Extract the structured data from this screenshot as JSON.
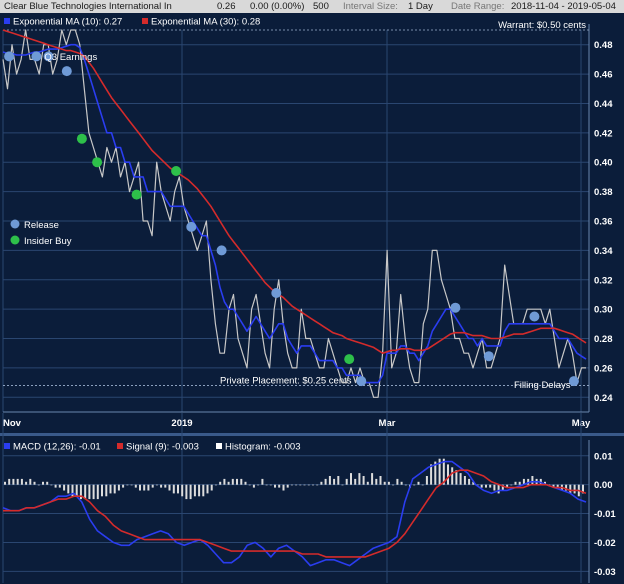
{
  "header": {
    "symbol_name": "Clear Blue Technologies International In",
    "price": "0.26",
    "change": "0.00 (0.00%)",
    "volume": "500",
    "interval_label": "Interval Size:",
    "interval_value": "1 Day",
    "range_label": "Date Range:",
    "range_value": "2018-11-04 - 2019-05-04"
  },
  "chart_data": [
    {
      "type": "line",
      "x_labels": [
        "Nov",
        "2019",
        "Mar",
        "May"
      ],
      "ylim": [
        0.23,
        0.49
      ],
      "y_ticks": [
        "0.24",
        "0.26",
        "0.28",
        "0.30",
        "0.32",
        "0.34",
        "0.36",
        "0.38",
        "0.40",
        "0.42",
        "0.44",
        "0.46",
        "0.48"
      ],
      "grid": true,
      "legend": [
        {
          "label": "Exponential MA (10): 0.27",
          "color": "#2a3df0"
        },
        {
          "label": "Exponential MA (30): 0.28",
          "color": "#d42b2b"
        }
      ],
      "series": [
        {
          "name": "Price",
          "color": "#c8c8c8",
          "values": [
            0.47,
            0.45,
            0.48,
            0.46,
            0.47,
            0.49,
            0.47,
            0.47,
            0.46,
            0.48,
            0.48,
            0.46,
            0.47,
            0.49,
            0.48,
            0.49,
            0.49,
            0.48,
            0.45,
            0.42,
            0.41,
            0.4,
            0.39,
            0.41,
            0.4,
            0.41,
            0.39,
            0.4,
            0.38,
            0.39,
            0.4,
            0.36,
            0.36,
            0.35,
            0.4,
            0.38,
            0.37,
            0.36,
            0.38,
            0.39,
            0.37,
            0.36,
            0.35,
            0.34,
            0.35,
            0.36,
            0.32,
            0.29,
            0.27,
            0.27,
            0.3,
            0.31,
            0.28,
            0.27,
            0.26,
            0.3,
            0.31,
            0.29,
            0.27,
            0.26,
            0.3,
            0.32,
            0.29,
            0.27,
            0.26,
            0.26,
            0.3,
            0.28,
            0.28,
            0.27,
            0.26,
            0.26,
            0.28,
            0.27,
            0.26,
            0.25,
            0.25,
            0.26,
            0.25,
            0.26,
            0.25,
            0.25,
            0.24,
            0.24,
            0.27,
            0.34,
            0.26,
            0.27,
            0.31,
            0.28,
            0.26,
            0.25,
            0.25,
            0.29,
            0.3,
            0.34,
            0.34,
            0.32,
            0.31,
            0.3,
            0.28,
            0.28,
            0.27,
            0.27,
            0.26,
            0.27,
            0.28,
            0.26,
            0.26,
            0.27,
            0.28,
            0.33,
            0.31,
            0.29,
            0.29,
            0.29,
            0.3,
            0.3,
            0.3,
            0.3,
            0.29,
            0.3,
            0.28,
            0.26,
            0.27,
            0.28,
            0.27,
            0.25,
            0.26,
            0.26
          ]
        },
        {
          "name": "Exponential MA (10)",
          "color": "#2a3df0",
          "values": [
            0.475,
            0.474,
            0.474,
            0.473,
            0.473,
            0.473,
            0.474,
            0.475,
            0.475,
            0.476,
            0.477,
            0.477,
            0.477,
            0.478,
            0.479,
            0.48,
            0.48,
            0.478,
            0.47,
            0.46,
            0.45,
            0.44,
            0.43,
            0.42,
            0.42,
            0.41,
            0.41,
            0.4,
            0.4,
            0.39,
            0.39,
            0.39,
            0.38,
            0.38,
            0.38,
            0.38,
            0.375,
            0.37,
            0.37,
            0.37,
            0.37,
            0.365,
            0.36,
            0.355,
            0.35,
            0.35,
            0.34,
            0.33,
            0.315,
            0.305,
            0.3,
            0.3,
            0.295,
            0.29,
            0.285,
            0.29,
            0.295,
            0.29,
            0.285,
            0.28,
            0.285,
            0.29,
            0.29,
            0.28,
            0.275,
            0.27,
            0.275,
            0.275,
            0.275,
            0.27,
            0.265,
            0.265,
            0.265,
            0.265,
            0.26,
            0.26,
            0.255,
            0.255,
            0.255,
            0.255,
            0.25,
            0.25,
            0.25,
            0.25,
            0.255,
            0.27,
            0.27,
            0.27,
            0.275,
            0.275,
            0.27,
            0.27,
            0.265,
            0.27,
            0.275,
            0.285,
            0.29,
            0.295,
            0.3,
            0.3,
            0.295,
            0.29,
            0.285,
            0.28,
            0.28,
            0.275,
            0.28,
            0.275,
            0.275,
            0.275,
            0.275,
            0.285,
            0.29,
            0.29,
            0.29,
            0.29,
            0.29,
            0.29,
            0.29,
            0.29,
            0.29,
            0.29,
            0.285,
            0.28,
            0.28,
            0.28,
            0.275,
            0.27,
            0.268,
            0.266
          ]
        },
        {
          "name": "Exponential MA (30)",
          "color": "#d42b2b",
          "values": [
            0.49,
            0.489,
            0.488,
            0.487,
            0.486,
            0.485,
            0.484,
            0.483,
            0.482,
            0.481,
            0.48,
            0.479,
            0.478,
            0.477,
            0.476,
            0.476,
            0.475,
            0.474,
            0.472,
            0.468,
            0.464,
            0.459,
            0.454,
            0.449,
            0.444,
            0.44,
            0.436,
            0.432,
            0.428,
            0.424,
            0.42,
            0.416,
            0.412,
            0.408,
            0.405,
            0.402,
            0.399,
            0.396,
            0.394,
            0.392,
            0.39,
            0.388,
            0.385,
            0.382,
            0.378,
            0.374,
            0.37,
            0.365,
            0.36,
            0.355,
            0.35,
            0.346,
            0.342,
            0.338,
            0.334,
            0.33,
            0.326,
            0.322,
            0.318,
            0.315,
            0.312,
            0.31,
            0.308,
            0.305,
            0.302,
            0.3,
            0.298,
            0.296,
            0.294,
            0.292,
            0.29,
            0.288,
            0.286,
            0.284,
            0.283,
            0.282,
            0.28,
            0.279,
            0.278,
            0.277,
            0.276,
            0.275,
            0.274,
            0.272,
            0.27,
            0.271,
            0.272,
            0.272,
            0.273,
            0.273,
            0.273,
            0.272,
            0.272,
            0.272,
            0.273,
            0.275,
            0.277,
            0.279,
            0.281,
            0.283,
            0.284,
            0.284,
            0.284,
            0.283,
            0.282,
            0.282,
            0.282,
            0.281,
            0.28,
            0.28,
            0.28,
            0.281,
            0.282,
            0.283,
            0.283,
            0.283,
            0.284,
            0.285,
            0.286,
            0.287,
            0.287,
            0.287,
            0.287,
            0.286,
            0.285,
            0.284,
            0.283,
            0.281,
            0.279,
            0.277
          ]
        }
      ],
      "reference_lines": [
        {
          "label": "Warrant: $0.50 cents",
          "value": 0.49
        },
        {
          "label": "Private Placement: $0.25 cents",
          "value": 0.248
        }
      ],
      "annotations": [
        {
          "label": "Q3 Earnings",
          "kind": "release",
          "index": 11,
          "value": 0.472
        }
      ],
      "event_markers": [
        {
          "kind": "release",
          "index": 2,
          "value": 0.472
        },
        {
          "kind": "release",
          "index": 11,
          "value": 0.472
        },
        {
          "kind": "release",
          "index": 21,
          "value": 0.462
        },
        {
          "kind": "release",
          "index": 15,
          "value": 0.472
        },
        {
          "kind": "buy",
          "index": 26,
          "value": 0.416
        },
        {
          "kind": "buy",
          "index": 31,
          "value": 0.4
        },
        {
          "kind": "buy",
          "index": 44,
          "value": 0.378
        },
        {
          "kind": "buy",
          "index": 57,
          "value": 0.394
        },
        {
          "kind": "release",
          "index": 62,
          "value": 0.356
        },
        {
          "kind": "release",
          "index": 72,
          "value": 0.34
        },
        {
          "kind": "release",
          "index": 90,
          "value": 0.311
        },
        {
          "kind": "buy",
          "index": 114,
          "value": 0.266
        },
        {
          "kind": "release",
          "index": 118,
          "value": 0.251
        },
        {
          "kind": "release",
          "index": 149,
          "value": 0.301
        },
        {
          "kind": "release",
          "index": 160,
          "value": 0.268
        },
        {
          "kind": "release",
          "index": 175,
          "value": 0.295
        },
        {
          "kind": "release",
          "index": 188,
          "value": 0.251
        }
      ],
      "marker_legend": [
        {
          "label": "Release",
          "color": "#6f9ad6"
        },
        {
          "label": "Insider Buy",
          "color": "#2ec04a"
        }
      ],
      "filing_label": "Filling Delays"
    },
    {
      "type": "line",
      "ylim": [
        -0.033,
        0.012
      ],
      "y_ticks": [
        "0.01",
        "0.00",
        "-0.01",
        "-0.02",
        "-0.03"
      ],
      "grid": true,
      "legend": [
        {
          "label": "MACD (12,26): -0.01",
          "color": "#2a3df0"
        },
        {
          "label": "Signal (9): -0.003",
          "color": "#d42b2b"
        },
        {
          "label": "Histogram: -0.003",
          "color": "#ffffff"
        }
      ],
      "series": [
        {
          "name": "MACD (12,26)",
          "color": "#2a3df0",
          "values": [
            -0.008,
            -0.009,
            -0.009,
            -0.008,
            -0.008,
            -0.007,
            -0.006,
            -0.004,
            -0.004,
            -0.003,
            -0.006,
            -0.012,
            -0.016,
            -0.018,
            -0.02,
            -0.021,
            -0.021,
            -0.019,
            -0.018,
            -0.017,
            -0.016,
            -0.017,
            -0.02,
            -0.021,
            -0.02,
            -0.019,
            -0.021,
            -0.024,
            -0.027,
            -0.027,
            -0.025,
            -0.021,
            -0.02,
            -0.022,
            -0.025,
            -0.022,
            -0.021,
            -0.023,
            -0.025,
            -0.028,
            -0.027,
            -0.026,
            -0.026,
            -0.027,
            -0.028,
            -0.026,
            -0.024,
            -0.022,
            -0.021,
            -0.02,
            -0.018,
            -0.006,
            0.002,
            0.004,
            0.006,
            0.007,
            0.008,
            0.008,
            0.006,
            0.004,
            0.0,
            -0.002,
            -0.003,
            -0.002,
            -0.002,
            -0.001,
            0.0,
            0.001,
            0.001,
            0.0,
            -0.001,
            -0.002,
            -0.003,
            -0.005,
            -0.006
          ]
        },
        {
          "name": "Signal (9)",
          "color": "#d42b2b",
          "values": [
            -0.009,
            -0.009,
            -0.009,
            -0.008,
            -0.008,
            -0.007,
            -0.006,
            -0.005,
            -0.005,
            -0.004,
            -0.004,
            -0.006,
            -0.009,
            -0.011,
            -0.014,
            -0.016,
            -0.017,
            -0.018,
            -0.019,
            -0.019,
            -0.019,
            -0.019,
            -0.019,
            -0.019,
            -0.019,
            -0.019,
            -0.02,
            -0.021,
            -0.022,
            -0.023,
            -0.023,
            -0.023,
            -0.023,
            -0.023,
            -0.023,
            -0.023,
            -0.023,
            -0.023,
            -0.024,
            -0.024,
            -0.024,
            -0.025,
            -0.025,
            -0.025,
            -0.025,
            -0.025,
            -0.025,
            -0.024,
            -0.023,
            -0.022,
            -0.02,
            -0.017,
            -0.013,
            -0.009,
            -0.005,
            -0.001,
            0.001,
            0.004,
            0.005,
            0.005,
            0.004,
            0.003,
            0.001,
            0.0,
            -0.001,
            -0.001,
            -0.001,
            0.0,
            0.0,
            0.0,
            -0.001,
            -0.001,
            -0.002,
            -0.002,
            -0.003
          ]
        },
        {
          "name": "Histogram",
          "color": "#dddddd",
          "values": [
            0.001,
            0.002,
            0.002,
            0.002,
            0.002,
            0.001,
            0.002,
            0.001,
            0.0,
            0.001,
            0.001,
            0.0,
            -0.001,
            -0.001,
            -0.002,
            -0.003,
            -0.004,
            -0.004,
            -0.005,
            -0.005,
            -0.005,
            -0.005,
            -0.005,
            -0.004,
            -0.004,
            -0.003,
            -0.003,
            -0.002,
            -0.001,
            0.0,
            0.0,
            -0.001,
            -0.002,
            -0.002,
            -0.002,
            -0.001,
            0.0,
            -0.001,
            -0.001,
            -0.002,
            -0.003,
            -0.003,
            -0.004,
            -0.005,
            -0.005,
            -0.004,
            -0.004,
            -0.004,
            -0.003,
            -0.002,
            0.0,
            0.001,
            0.002,
            0.001,
            0.002,
            0.002,
            0.002,
            0.001,
            0.0,
            -0.001,
            0.0,
            0.002,
            0.0,
            0.0,
            -0.001,
            -0.001,
            -0.002,
            -0.001,
            0.0,
            0.0,
            0.0,
            0.0,
            0.0,
            0.0,
            0.0,
            0.001,
            0.002,
            0.003,
            0.002,
            0.003,
            0.0,
            0.002,
            0.004,
            0.002,
            0.004,
            0.003,
            0.001,
            0.004,
            0.002,
            0.003,
            0.001,
            0.001,
            0.0,
            0.002,
            0.001,
            0.0,
            -0.001,
            0.0,
            0.001,
            0.0,
            0.003,
            0.007,
            0.008,
            0.009,
            0.009,
            0.007,
            0.006,
            0.005,
            0.004,
            0.003,
            0.002,
            0.001,
            0.0,
            -0.001,
            -0.001,
            -0.001,
            -0.002,
            -0.003,
            -0.002,
            -0.001,
            0.0,
            0.001,
            0.001,
            0.002,
            0.002,
            0.003,
            0.002,
            0.002,
            0.001,
            0.0,
            -0.001,
            -0.001,
            -0.002,
            -0.002,
            -0.003,
            -0.003,
            -0.004,
            -0.003
          ]
        }
      ]
    }
  ],
  "colors": {
    "background": "#0b1d3a",
    "grid": "#2a4670",
    "axis_text": "#ffffff",
    "header_bg": "#d9d9d9"
  }
}
